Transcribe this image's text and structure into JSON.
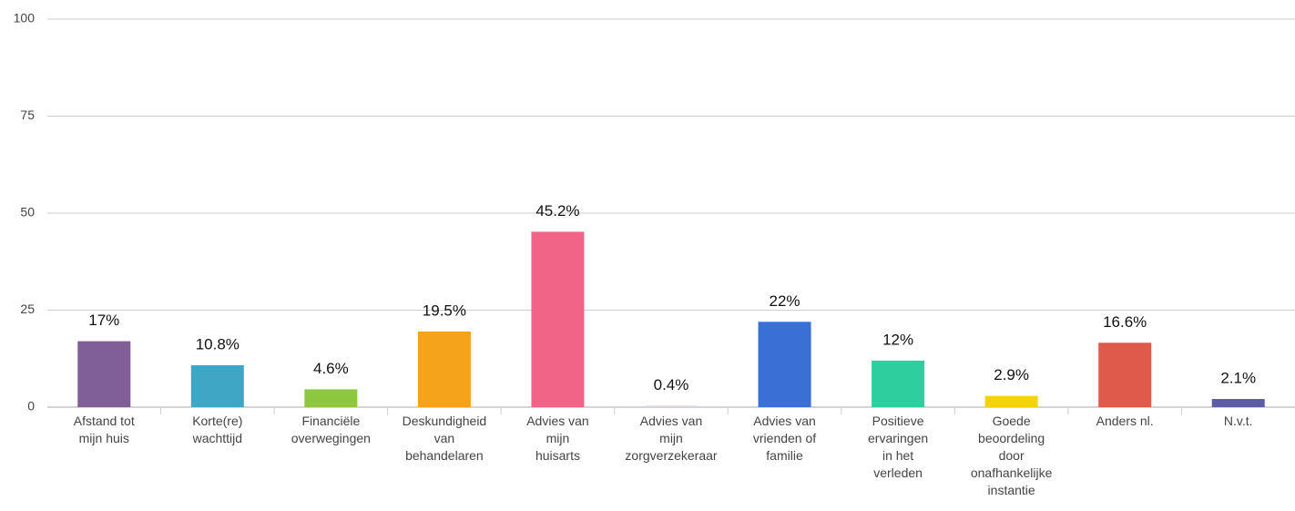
{
  "chart_data": {
    "type": "bar",
    "categories": [
      "Afstand tot\nmijn huis",
      "Korte(re)\nwachttijd",
      "Financiële\noverwegingen",
      "Deskundigheid\nvan\nbehandelaren",
      "Advies van\nmijn\nhuisarts",
      "Advies van\nmijn\nzorgverzekeraar",
      "Advies van\nvrienden of\nfamilie",
      "Positieve\nervaringen\nin het\nverleden",
      "Goede\nbeoordeling\ndoor\nonafhankelijke\ninstantie",
      "Anders nl.",
      "N.v.t."
    ],
    "values": [
      17,
      10.8,
      4.6,
      19.5,
      45.2,
      0.4,
      22,
      12,
      2.9,
      16.6,
      2.1
    ],
    "value_labels": [
      "17%",
      "10.8%",
      "4.6%",
      "19.5%",
      "45.2%",
      "0.4%",
      "22%",
      "12%",
      "2.9%",
      "16.6%",
      "2.1%"
    ],
    "colors": [
      "#7f5f96",
      "#3fa6c6",
      "#8dc63f",
      "#f5a31a",
      "#f06487",
      "#e3d3ee",
      "#3a6fd6",
      "#2ecf9e",
      "#f5d20a",
      "#df5a4a",
      "#5b5ba6"
    ],
    "ylim": [
      0,
      100
    ],
    "yticks": [
      0,
      25,
      50,
      75,
      100
    ],
    "grid": true
  }
}
